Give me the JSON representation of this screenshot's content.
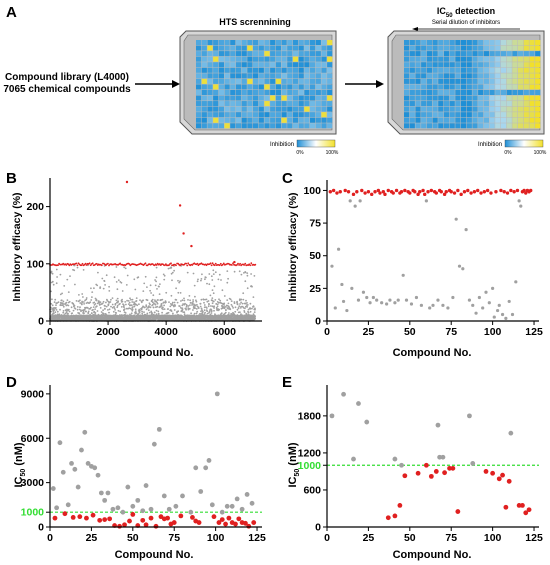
{
  "panel_a": {
    "letter": "A",
    "library_line1": "Compound library (L4000)",
    "library_line2": "7065 chemical compounds",
    "hts_title": "HTS scrennining",
    "ic50_title_main": "IC",
    "ic50_title_sub": "50",
    "ic50_title_rest": " detection",
    "serial_dilution": "Serial dilution of inhibitors",
    "legend_label": "Inhibition",
    "legend_min": "0%",
    "legend_max": "100%",
    "color_low": "#1f8fd6",
    "color_high": "#f2e02a"
  },
  "panels": {
    "b_letter": "B",
    "c_letter": "C",
    "d_letter": "D",
    "e_letter": "E"
  },
  "chart_data": [
    {
      "id": "B",
      "type": "scatter",
      "xlabel": "Compound No.",
      "ylabel": "Inhibitory efficacy (%)",
      "xlim": [
        0,
        7300
      ],
      "ylim": [
        0,
        250
      ],
      "xticks": [
        0,
        2000,
        4000,
        6000
      ],
      "yticks": [
        0,
        100,
        200
      ],
      "reference_line": 100,
      "gray_color": "#a0a0a0",
      "highlight_color": "#e02020",
      "highlight_points": [
        [
          2650,
          243
        ],
        [
          4480,
          202
        ],
        [
          4600,
          153
        ],
        [
          4870,
          131
        ],
        [
          6350,
          103
        ]
      ]
    },
    {
      "id": "C",
      "type": "scatter",
      "xlabel": "Compound No.",
      "ylabel": "Inhibitory efficacy (%)",
      "xlim": [
        0,
        128
      ],
      "ylim": [
        0,
        108
      ],
      "xticks": [
        0,
        25,
        50,
        75,
        100,
        125
      ],
      "yticks": [
        0,
        25,
        50,
        75,
        100
      ],
      "gray_points": [
        [
          3,
          42
        ],
        [
          5,
          10
        ],
        [
          7,
          55
        ],
        [
          9,
          28
        ],
        [
          10,
          15
        ],
        [
          12,
          8
        ],
        [
          14,
          92
        ],
        [
          15,
          25
        ],
        [
          17,
          88
        ],
        [
          19,
          16
        ],
        [
          20,
          92
        ],
        [
          22,
          22
        ],
        [
          24,
          18
        ],
        [
          26,
          14
        ],
        [
          28,
          18
        ],
        [
          30,
          16
        ],
        [
          33,
          14
        ],
        [
          36,
          13
        ],
        [
          38,
          16
        ],
        [
          41,
          14
        ],
        [
          43,
          16
        ],
        [
          46,
          35
        ],
        [
          48,
          16
        ],
        [
          51,
          13
        ],
        [
          54,
          18
        ],
        [
          57,
          12
        ],
        [
          60,
          92
        ],
        [
          62,
          10
        ],
        [
          64,
          12
        ],
        [
          67,
          16
        ],
        [
          70,
          12
        ],
        [
          73,
          10
        ],
        [
          76,
          18
        ],
        [
          78,
          78
        ],
        [
          80,
          42
        ],
        [
          82,
          40
        ],
        [
          84,
          70
        ],
        [
          86,
          16
        ],
        [
          88,
          12
        ],
        [
          90,
          6
        ],
        [
          92,
          18
        ],
        [
          94,
          10
        ],
        [
          96,
          22
        ],
        [
          98,
          14
        ],
        [
          100,
          25
        ],
        [
          101,
          3
        ],
        [
          103,
          8
        ],
        [
          104,
          12
        ],
        [
          106,
          5
        ],
        [
          108,
          2
        ],
        [
          110,
          15
        ],
        [
          112,
          5
        ],
        [
          114,
          30
        ],
        [
          116,
          92
        ],
        [
          117,
          88
        ]
      ],
      "red_points": [
        [
          2,
          99
        ],
        [
          4,
          100
        ],
        [
          6,
          98
        ],
        [
          8,
          99
        ],
        [
          11,
          100
        ],
        [
          13,
          99
        ],
        [
          16,
          97
        ],
        [
          18,
          99
        ],
        [
          21,
          100
        ],
        [
          23,
          98
        ],
        [
          25,
          99
        ],
        [
          27,
          97
        ],
        [
          29,
          99
        ],
        [
          31,
          100
        ],
        [
          32,
          98
        ],
        [
          34,
          99
        ],
        [
          35,
          97
        ],
        [
          37,
          100
        ],
        [
          39,
          99
        ],
        [
          40,
          98
        ],
        [
          42,
          100
        ],
        [
          44,
          98
        ],
        [
          45,
          99
        ],
        [
          47,
          100
        ],
        [
          49,
          99
        ],
        [
          50,
          98
        ],
        [
          52,
          100
        ],
        [
          53,
          99
        ],
        [
          55,
          97
        ],
        [
          56,
          99
        ],
        [
          58,
          100
        ],
        [
          59,
          97
        ],
        [
          61,
          99
        ],
        [
          63,
          100
        ],
        [
          65,
          99
        ],
        [
          66,
          98
        ],
        [
          68,
          100
        ],
        [
          69,
          99
        ],
        [
          71,
          97
        ],
        [
          72,
          99
        ],
        [
          74,
          100
        ],
        [
          75,
          99
        ],
        [
          77,
          98
        ],
        [
          79,
          100
        ],
        [
          81,
          97
        ],
        [
          83,
          99
        ],
        [
          85,
          100
        ],
        [
          87,
          98
        ],
        [
          89,
          99
        ],
        [
          91,
          100
        ],
        [
          93,
          98
        ],
        [
          95,
          99
        ],
        [
          97,
          100
        ],
        [
          99,
          98
        ],
        [
          102,
          99
        ],
        [
          105,
          100
        ],
        [
          107,
          99
        ],
        [
          109,
          98
        ],
        [
          111,
          100
        ],
        [
          113,
          99
        ],
        [
          115,
          100
        ],
        [
          118,
          99
        ],
        [
          119,
          100
        ],
        [
          120,
          98
        ],
        [
          121,
          100
        ],
        [
          122,
          99
        ],
        [
          123,
          100
        ]
      ],
      "gray_color": "#a0a0a0",
      "highlight_color": "#e02020"
    },
    {
      "id": "D",
      "type": "scatter",
      "xlabel": "Compound No.",
      "ylabel_main": "IC",
      "ylabel_sub": "50",
      "ylabel_unit": " (nM)",
      "xlim": [
        0,
        128
      ],
      "ylim": [
        0,
        9600
      ],
      "xticks": [
        0,
        25,
        50,
        75,
        100,
        125
      ],
      "yticks": [
        0,
        3000,
        6000,
        9000
      ],
      "highlight_tick": 1000,
      "highlight_tick_label": "1000",
      "gray_points": [
        [
          2,
          2600
        ],
        [
          4,
          1300
        ],
        [
          6,
          5700
        ],
        [
          8,
          3700
        ],
        [
          11,
          1500
        ],
        [
          13,
          4300
        ],
        [
          15,
          3900
        ],
        [
          17,
          2700
        ],
        [
          19,
          5200
        ],
        [
          21,
          6400
        ],
        [
          23,
          4300
        ],
        [
          25,
          4100
        ],
        [
          27,
          4000
        ],
        [
          29,
          3500
        ],
        [
          31,
          2300
        ],
        [
          33,
          1800
        ],
        [
          35,
          2300
        ],
        [
          38,
          1200
        ],
        [
          41,
          1300
        ],
        [
          44,
          1000
        ],
        [
          47,
          2700
        ],
        [
          50,
          1400
        ],
        [
          53,
          1800
        ],
        [
          56,
          1100
        ],
        [
          58,
          2800
        ],
        [
          61,
          1200
        ],
        [
          63,
          5600
        ],
        [
          66,
          6600
        ],
        [
          69,
          2100
        ],
        [
          72,
          1200
        ],
        [
          76,
          1400
        ],
        [
          80,
          2100
        ],
        [
          85,
          1000
        ],
        [
          88,
          4000
        ],
        [
          91,
          2400
        ],
        [
          94,
          4000
        ],
        [
          96,
          4500
        ],
        [
          98,
          1500
        ],
        [
          101,
          9000
        ],
        [
          104,
          1000
        ],
        [
          107,
          1400
        ],
        [
          110,
          1400
        ],
        [
          113,
          1900
        ],
        [
          116,
          1200
        ],
        [
          119,
          2200
        ],
        [
          122,
          1600
        ]
      ],
      "red_points": [
        [
          3,
          600
        ],
        [
          9,
          900
        ],
        [
          14,
          650
        ],
        [
          18,
          700
        ],
        [
          22,
          600
        ],
        [
          26,
          800
        ],
        [
          30,
          450
        ],
        [
          33,
          500
        ],
        [
          36,
          550
        ],
        [
          39,
          100
        ],
        [
          42,
          50
        ],
        [
          45,
          150
        ],
        [
          48,
          400
        ],
        [
          50,
          850
        ],
        [
          53,
          100
        ],
        [
          56,
          450
        ],
        [
          58,
          150
        ],
        [
          61,
          600
        ],
        [
          64,
          50
        ],
        [
          67,
          700
        ],
        [
          69,
          550
        ],
        [
          71,
          600
        ],
        [
          73,
          200
        ],
        [
          75,
          300
        ],
        [
          79,
          750
        ],
        [
          86,
          650
        ],
        [
          88,
          400
        ],
        [
          90,
          300
        ],
        [
          99,
          700
        ],
        [
          102,
          300
        ],
        [
          104,
          500
        ],
        [
          106,
          200
        ],
        [
          108,
          600
        ],
        [
          110,
          300
        ],
        [
          112,
          200
        ],
        [
          114,
          550
        ],
        [
          116,
          300
        ],
        [
          118,
          250
        ],
        [
          120,
          50
        ],
        [
          123,
          300
        ]
      ],
      "gray_color": "#a0a0a0",
      "highlight_color": "#e02020",
      "line_color": "#33dd33"
    },
    {
      "id": "E",
      "type": "scatter",
      "xlabel": "Compound No.",
      "ylabel_main": "IC",
      "ylabel_sub": "50",
      "ylabel_unit": " (nM)",
      "xlim": [
        0,
        128
      ],
      "ylim": [
        0,
        2300
      ],
      "xticks": [
        0,
        25,
        50,
        75,
        100,
        125
      ],
      "yticks": [
        0,
        600,
        1200,
        1800
      ],
      "highlight_tick": 1000,
      "highlight_tick_label": "1000",
      "gray_points": [
        [
          3,
          1800
        ],
        [
          10,
          2150
        ],
        [
          16,
          1100
        ],
        [
          19,
          2000
        ],
        [
          24,
          1700
        ],
        [
          41,
          1100
        ],
        [
          45,
          1000
        ],
        [
          67,
          1650
        ],
        [
          68,
          1130
        ],
        [
          70,
          1130
        ],
        [
          86,
          1800
        ],
        [
          88,
          1030
        ],
        [
          111,
          1520
        ]
      ],
      "red_points": [
        [
          37,
          150
        ],
        [
          41,
          180
        ],
        [
          44,
          350
        ],
        [
          47,
          830
        ],
        [
          55,
          870
        ],
        [
          60,
          1000
        ],
        [
          63,
          820
        ],
        [
          66,
          900
        ],
        [
          71,
          880
        ],
        [
          74,
          950
        ],
        [
          76,
          950
        ],
        [
          79,
          250
        ],
        [
          96,
          900
        ],
        [
          100,
          870
        ],
        [
          104,
          780
        ],
        [
          106,
          840
        ],
        [
          108,
          320
        ],
        [
          110,
          740
        ],
        [
          116,
          350
        ],
        [
          118,
          350
        ],
        [
          120,
          230
        ],
        [
          122,
          280
        ]
      ],
      "gray_color": "#a0a0a0",
      "highlight_color": "#e02020",
      "line_color": "#33dd33"
    }
  ]
}
